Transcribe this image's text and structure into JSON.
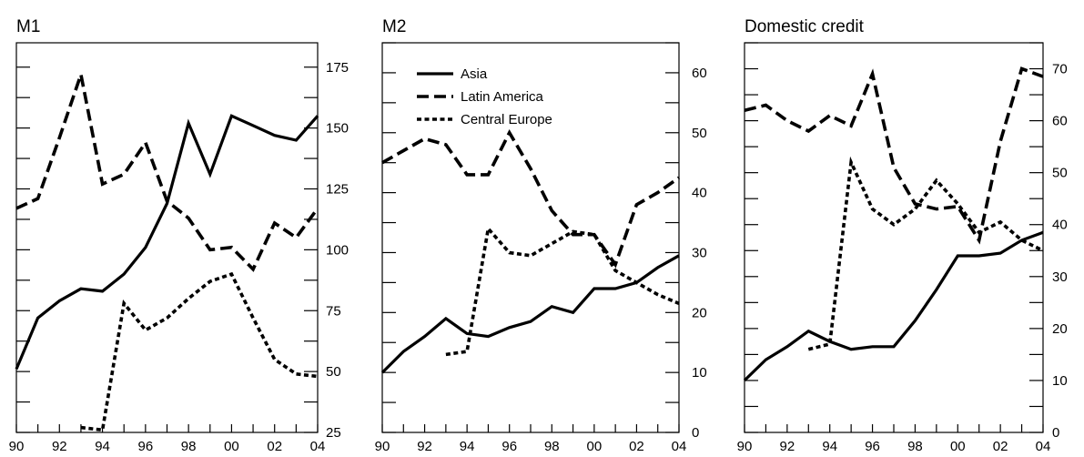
{
  "chart_data": [
    {
      "type": "line",
      "title": "M1",
      "x_tick_labels": [
        "90",
        "92",
        "94",
        "96",
        "98",
        "00",
        "02",
        "04"
      ],
      "x_range": [
        1990,
        2004
      ],
      "y_axis_side": "right",
      "ylim": [
        25,
        185
      ],
      "y_ticks": [
        25,
        50,
        75,
        100,
        125,
        150,
        175
      ],
      "y_tick_labels": [
        "25",
        "50",
        "75",
        "100",
        "125",
        "150",
        "175"
      ],
      "grid": false,
      "series": [
        {
          "key": "asia",
          "x": [
            1990,
            1991,
            1992,
            1993,
            1994,
            1995,
            1996,
            1997,
            1998,
            1999,
            2000,
            2001,
            2002,
            2003,
            2004
          ],
          "y": [
            51,
            72,
            79,
            84,
            83,
            90,
            101,
            119,
            152,
            131,
            155,
            151,
            147,
            145,
            155
          ]
        },
        {
          "key": "latin",
          "x": [
            1990,
            1991,
            1992,
            1993,
            1994,
            1995,
            1996,
            1997,
            1998,
            1999,
            2000,
            2001,
            2002,
            2003,
            2004
          ],
          "y": [
            117,
            121,
            146,
            172,
            127,
            131,
            144,
            120,
            113,
            100,
            101,
            92,
            111,
            105,
            117
          ]
        },
        {
          "key": "central",
          "x": [
            1993,
            1994,
            1995,
            1996,
            1997,
            1998,
            1999,
            2000,
            2001,
            2002,
            2003,
            2004
          ],
          "y": [
            27,
            26,
            78,
            67,
            72,
            80,
            87,
            90,
            72,
            55,
            49,
            48
          ]
        }
      ]
    },
    {
      "type": "line",
      "title": "M2",
      "x_tick_labels": [
        "90",
        "92",
        "94",
        "96",
        "98",
        "00",
        "02",
        "04"
      ],
      "x_range": [
        1990,
        2004
      ],
      "y_axis_side": "right",
      "ylim": [
        0,
        65
      ],
      "y_ticks": [
        0,
        10,
        20,
        30,
        40,
        50,
        60
      ],
      "y_tick_labels": [
        "0",
        "10",
        "20",
        "30",
        "40",
        "50",
        "60"
      ],
      "grid": false,
      "legend_placement": "top-left",
      "series": [
        {
          "key": "asia",
          "name": "Asia",
          "x": [
            1990,
            1991,
            1992,
            1993,
            1994,
            1995,
            1996,
            1997,
            1998,
            1999,
            2000,
            2001,
            2002,
            2003,
            2004
          ],
          "y": [
            10,
            13.5,
            16,
            19,
            16.5,
            16,
            17.5,
            18.5,
            21,
            20,
            24,
            24,
            25,
            27.5,
            29.5
          ]
        },
        {
          "key": "latin",
          "name": "Latin America",
          "x": [
            1990,
            1991,
            1992,
            1993,
            1994,
            1995,
            1996,
            1997,
            1998,
            1999,
            2000,
            2001,
            2002,
            2003,
            2004
          ],
          "y": [
            45,
            47,
            49,
            48,
            43,
            43,
            50,
            44,
            37,
            33,
            33,
            28,
            38,
            40,
            42.5
          ]
        },
        {
          "key": "central",
          "name": "Central Europe",
          "x": [
            1993,
            1994,
            1995,
            1996,
            1997,
            1998,
            1999,
            2000,
            2001,
            2002,
            2003,
            2004
          ],
          "y": [
            13,
            13.5,
            34,
            30,
            29.5,
            31.5,
            33.5,
            33,
            27,
            25,
            23,
            21.5
          ]
        }
      ]
    },
    {
      "type": "line",
      "title": "Domestic credit",
      "x_tick_labels": [
        "90",
        "92",
        "94",
        "96",
        "98",
        "00",
        "02",
        "04"
      ],
      "x_range": [
        1990,
        2004
      ],
      "y_axis_side": "right",
      "ylim": [
        0,
        75
      ],
      "y_ticks": [
        0,
        10,
        20,
        30,
        40,
        50,
        60,
        70
      ],
      "y_tick_labels": [
        "0",
        "10",
        "20",
        "30",
        "40",
        "50",
        "60",
        "70"
      ],
      "grid": false,
      "series": [
        {
          "key": "asia",
          "x": [
            1990,
            1991,
            1992,
            1993,
            1994,
            1995,
            1996,
            1997,
            1998,
            1999,
            2000,
            2001,
            2002,
            2003,
            2004
          ],
          "y": [
            10,
            14,
            16.5,
            19.5,
            17.5,
            16,
            16.5,
            16.5,
            21.5,
            27.5,
            34,
            34,
            34.5,
            37,
            38.5
          ]
        },
        {
          "key": "latin",
          "x": [
            1990,
            1991,
            1992,
            1993,
            1994,
            1995,
            1996,
            1997,
            1998,
            1999,
            2000,
            2001,
            2002,
            2003,
            2004
          ],
          "y": [
            62,
            63,
            60,
            58,
            61,
            59,
            69,
            51,
            44,
            43,
            43.5,
            37,
            56,
            70,
            68.5
          ]
        },
        {
          "key": "central",
          "x": [
            1993,
            1994,
            1995,
            1996,
            1997,
            1998,
            1999,
            2000,
            2001,
            2002,
            2003,
            2004
          ],
          "y": [
            16,
            17,
            52,
            43,
            40,
            43,
            48.5,
            44,
            38.5,
            40.5,
            37,
            35
          ]
        }
      ]
    }
  ]
}
